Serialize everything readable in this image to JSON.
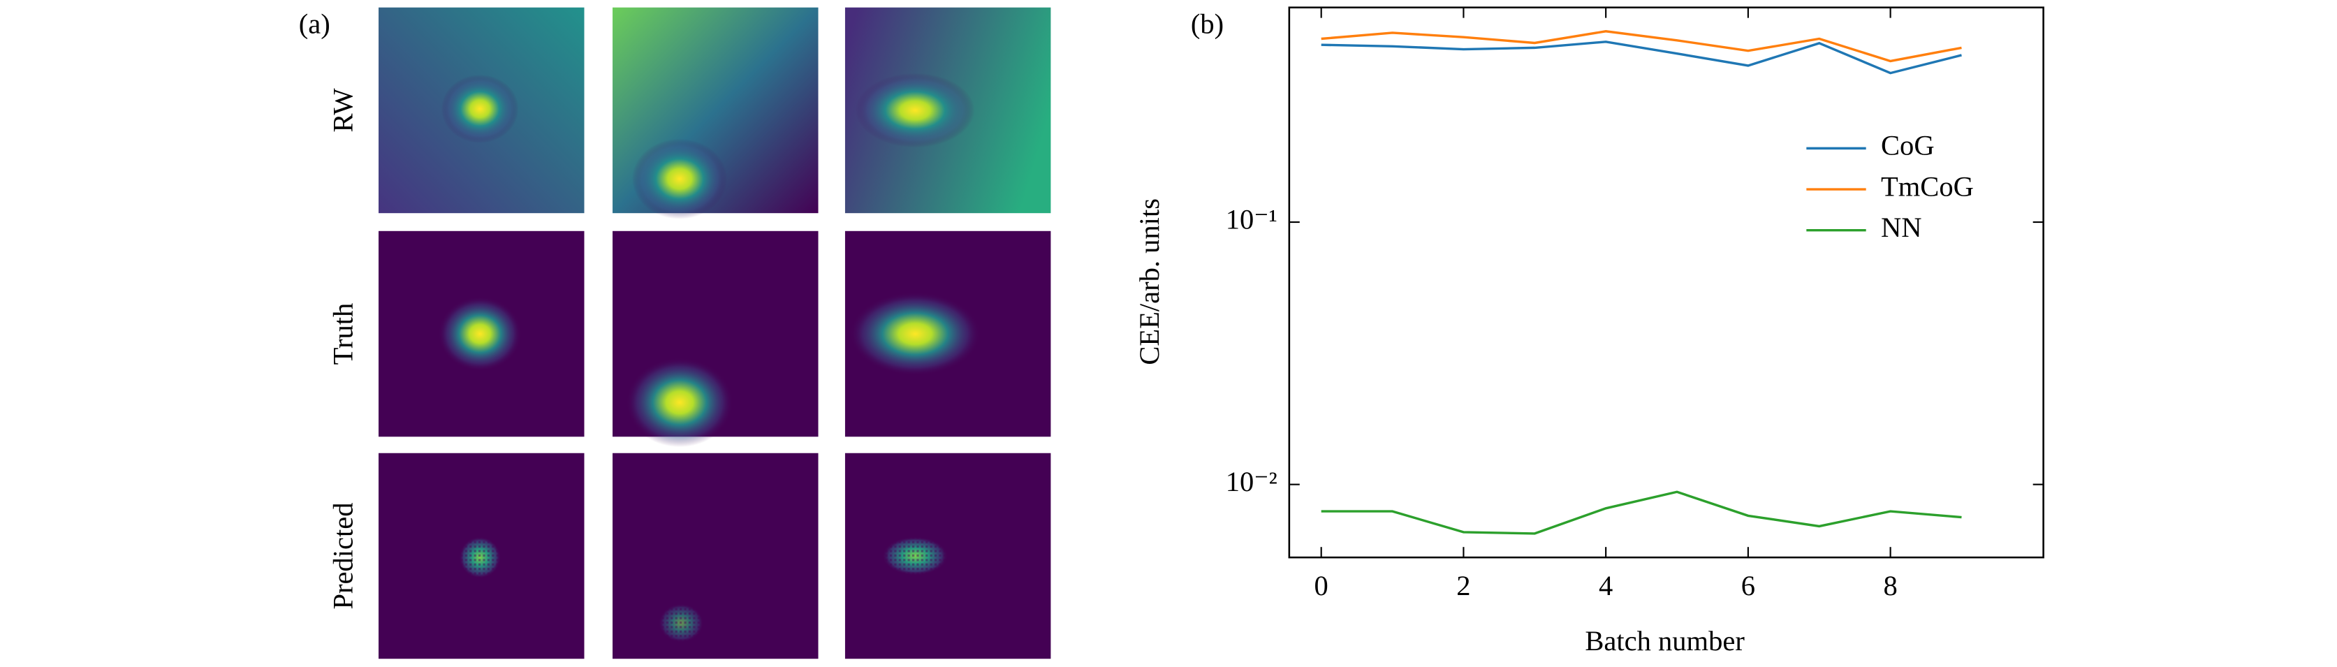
{
  "panel_a": {
    "label": "(a)",
    "rows": [
      "RW",
      "Truth",
      "Predicted"
    ]
  },
  "chart_data": {
    "type": "line",
    "panel_label": "(b)",
    "xlabel": "Batch number",
    "ylabel": "CEE/arb. units",
    "x": [
      0,
      1,
      2,
      3,
      4,
      5,
      6,
      7,
      8,
      9
    ],
    "series": [
      {
        "name": "CoG",
        "color": "#1f77b4",
        "values": [
          0.474,
          0.468,
          0.456,
          0.462,
          0.487,
          0.439,
          0.395,
          0.481,
          0.37,
          0.433
        ]
      },
      {
        "name": "TmCoG",
        "color": "#ff7f0e",
        "values": [
          0.5,
          0.527,
          0.507,
          0.482,
          0.534,
          0.493,
          0.45,
          0.5,
          0.411,
          0.462
        ]
      },
      {
        "name": "NN",
        "color": "#2ca02c",
        "values": [
          0.0079,
          0.0079,
          0.00658,
          0.0065,
          0.00811,
          0.00937,
          0.0076,
          0.00693,
          0.0079,
          0.0075
        ]
      }
    ],
    "xlim": [
      -0.45,
      10.15
    ],
    "xticks": [
      0,
      2,
      4,
      6,
      8
    ],
    "ylim": [
      0.00527,
      0.658
    ],
    "ylog": true,
    "yticks": [
      {
        "value": 0.01,
        "label": "10⁻²"
      },
      {
        "value": 0.1,
        "label": "10⁻¹"
      }
    ],
    "legend": "center right"
  }
}
